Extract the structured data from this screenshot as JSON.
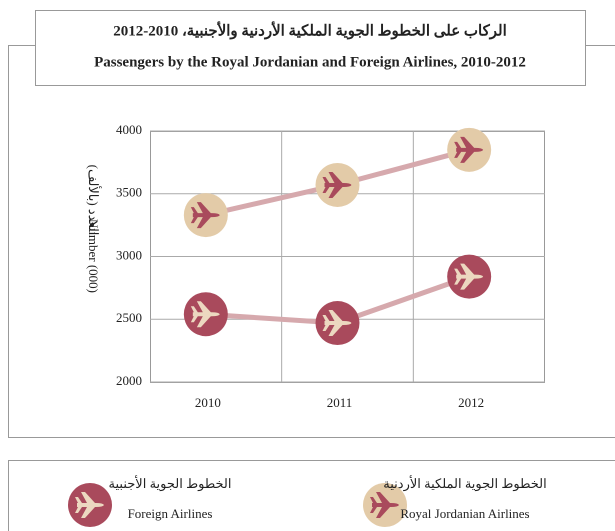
{
  "chart_data": {
    "type": "line",
    "title_ar": "الركاب على الخطوط الجوية الملكية الأردنية والأجنبية، 2010-2012",
    "title": "Passengers by the Royal Jordanian and Foreign Airlines, 2010-2012",
    "y_label": "Number (000)",
    "y_label_ar": "العدد (بالألف)",
    "categories": [
      "2010",
      "2011",
      "2012"
    ],
    "series": [
      {
        "name": "Royal Jordanian Airlines",
        "name_ar": "الخطوط الجوية الملكية الأردنية",
        "color": "#e3cba8",
        "icon_color": "#a94a5c",
        "line_color": "#d6a9ad",
        "values": [
          3330,
          3570,
          3850
        ]
      },
      {
        "name": "Foreign Airlines",
        "name_ar": "الخطوط الجوية الأجنبية",
        "color": "#a94a5c",
        "icon_color": "#ecd8c0",
        "line_color": "#d6a9ad",
        "values": [
          2540,
          2470,
          2840
        ]
      }
    ],
    "ylim": [
      2000,
      4000
    ],
    "yticks": [
      2000,
      2500,
      3000,
      3500,
      4000
    ],
    "grid": true
  }
}
